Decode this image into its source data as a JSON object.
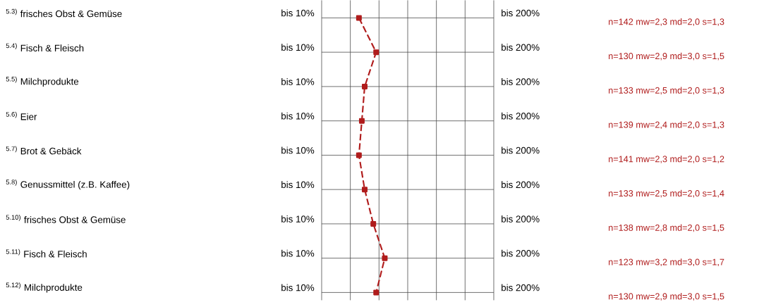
{
  "chart_data": {
    "type": "line",
    "orientation": "horizontal",
    "categories": [
      "$^{5.3)}$ frisches Obst & Gemüse",
      "$^{5.4)}$ Fisch & Fleisch",
      "$^{5.5)}$ Milchprodukte",
      "$^{5.6)}$ Eier",
      "$^{5.7)}$ Brot & Gebäck",
      "$^{5.8)}$ Genussmittel (z.B. Kaffee)",
      "$^{5.10)}$ frisches Obst & Gemüse",
      "$^{5.11)}$ Fisch & Fleisch",
      "$^{5.12)}$ Milchprodukte"
    ],
    "series": [
      {
        "color": "#b01c1c",
        "values": [
          2.3,
          2.9,
          2.5,
          2.4,
          2.3,
          2.5,
          2.8,
          3.2,
          2.9
        ],
        "value_labels": [
          "n=142   mw=2,3   md=2,0   s=1,3",
          "n=130   mw=2,9   md=3,0   s=1,5",
          "n=133   mw=2,5   md=2,0   s=1,3",
          "n=139   mw=2,4   md=2,0   s=1,3",
          "n=141   mw=2,3   md=2,0   s=1,2",
          "n=133   mw=2,5   md=2,0   s=1,4",
          "n=138   mw=2,8   md=2,0   s=1,5",
          "n=123   mw=3,2   md=3,0   s=1,7",
          "n=130   mw=2,9   md=3,0   s=1,5"
        ]
      }
    ],
    "xlim": [
      1,
      7
    ],
    "xticks": [
      {
        "value": 1,
        "label": null
      },
      {
        "value": 2,
        "label": null
      },
      {
        "value": 3,
        "label": null
      },
      {
        "value": 4,
        "label": null
      },
      {
        "value": 5,
        "label": null
      },
      {
        "value": 6,
        "label": null
      },
      {
        "value": 7,
        "label": null
      }
    ],
    "annotations": [
      "bis 10%",
      "bis 200%"
    ],
    "grid": true,
    "marker": "square",
    "line_style": "dashed"
  }
}
